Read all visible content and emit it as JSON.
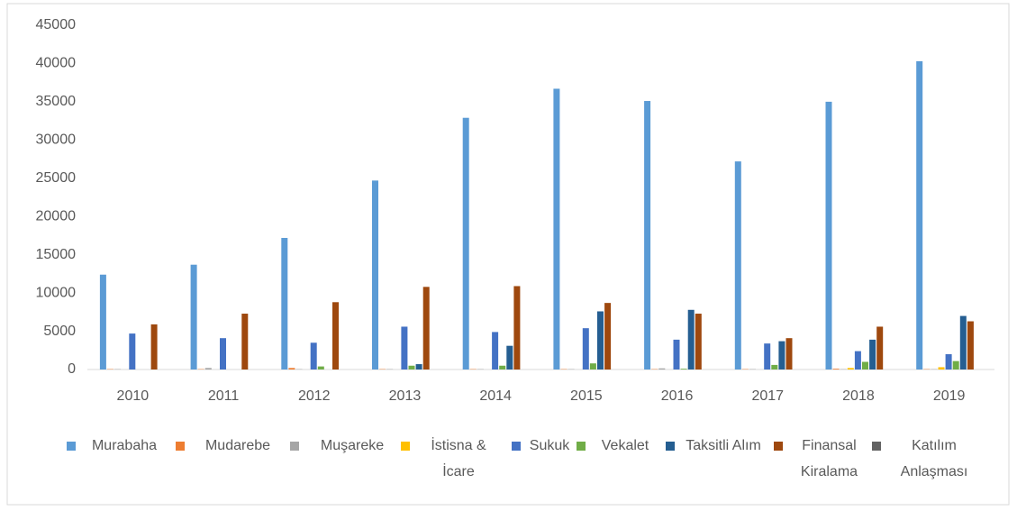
{
  "chart_data": {
    "type": "bar",
    "categories": [
      "2010",
      "2011",
      "2012",
      "2013",
      "2014",
      "2015",
      "2016",
      "2017",
      "2018",
      "2019"
    ],
    "series": [
      {
        "name": "Murabaha",
        "color": "#5b9bd5",
        "values": [
          12400,
          13700,
          17200,
          24700,
          32900,
          36700,
          35100,
          27200,
          35000,
          40300
        ]
      },
      {
        "name": "Mudarebe",
        "color": "#ed7d31",
        "values": [
          50,
          50,
          200,
          50,
          50,
          50,
          50,
          50,
          100,
          50
        ]
      },
      {
        "name": "Muşareke",
        "color": "#a5a5a5",
        "values": [
          50,
          200,
          50,
          50,
          50,
          50,
          150,
          50,
          50,
          50
        ]
      },
      {
        "name": "İstisna & İcare",
        "color": "#ffc000",
        "values": [
          0,
          0,
          0,
          0,
          0,
          0,
          0,
          0,
          200,
          300
        ]
      },
      {
        "name": "Sukuk",
        "color": "#4472c4",
        "values": [
          4700,
          4100,
          3500,
          5600,
          4900,
          5400,
          3900,
          3400,
          2400,
          2000
        ]
      },
      {
        "name": "Vekalet",
        "color": "#70ad47",
        "values": [
          0,
          0,
          400,
          500,
          500,
          800,
          100,
          600,
          1000,
          1100
        ]
      },
      {
        "name": "Taksitli Alım",
        "color": "#255e91",
        "values": [
          0,
          0,
          0,
          700,
          3100,
          7600,
          7800,
          3700,
          3900,
          7000
        ]
      },
      {
        "name": "Finansal Kiralama",
        "color": "#9e480e",
        "values": [
          5900,
          7300,
          8800,
          10800,
          10900,
          8700,
          7300,
          4100,
          5600,
          6300
        ]
      },
      {
        "name": "Katılım Anlaşması",
        "color": "#636363",
        "values": [
          0,
          0,
          0,
          0,
          0,
          0,
          0,
          0,
          0,
          0
        ]
      }
    ],
    "ylim": [
      0,
      45000
    ],
    "yticks": [
      0,
      5000,
      10000,
      15000,
      20000,
      25000,
      30000,
      35000,
      40000,
      45000
    ],
    "grid": false,
    "legend": "bottom"
  }
}
